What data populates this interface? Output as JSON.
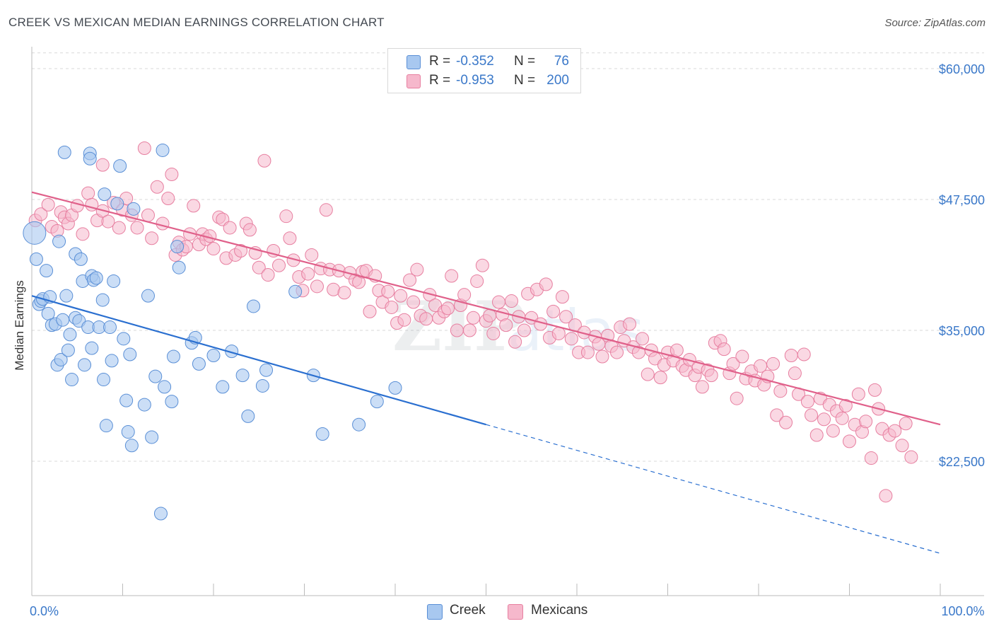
{
  "header": {
    "title": "CREEK VS MEXICAN MEDIAN EARNINGS CORRELATION CHART",
    "source": "Source: ZipAtlas.com"
  },
  "legend_top": {
    "creek": {
      "r_label": "R =",
      "r_value": "-0.352",
      "n_label": "N =",
      "n_value": "76"
    },
    "mexicans": {
      "r_label": "R =",
      "r_value": "-0.953",
      "n_label": "N =",
      "n_value": "200"
    }
  },
  "legend_bottom": {
    "creek": "Creek",
    "mexicans": "Mexicans"
  },
  "colors": {
    "creek_fill": "#a8c8f0",
    "creek_stroke": "#5a8fd6",
    "creek_line": "#2a6fd0",
    "mex_fill": "#f6b8cc",
    "mex_stroke": "#e77fa0",
    "mex_line": "#e0608a",
    "grid": "#d8d8d8",
    "tick_label": "#3a78c9"
  },
  "chart_data": {
    "type": "scatter",
    "title": "CREEK VS MEXICAN MEDIAN EARNINGS CORRELATION CHART",
    "xlabel": "",
    "ylabel": "Median Earnings",
    "xlim": [
      0,
      100
    ],
    "ylim": [
      12000,
      62000
    ],
    "x_tick_labels": [
      {
        "v": 0,
        "label": "0.0%"
      },
      {
        "v": 100,
        "label": "100.0%"
      }
    ],
    "y_ticks": [
      {
        "v": 22500,
        "label": "$22,500"
      },
      {
        "v": 35000,
        "label": "$35,000"
      },
      {
        "v": 47500,
        "label": "$47,500"
      },
      {
        "v": 60000,
        "label": "$60,000"
      }
    ],
    "grid": "horizontal dashed",
    "series": [
      {
        "name": "Creek",
        "trend": {
          "x0": 0,
          "y0": 38300,
          "x1": 50,
          "y1": 26000,
          "dashed_to": 100,
          "dashed_y": 13700
        },
        "points": [
          [
            0.3,
            44300
          ],
          [
            0.5,
            41800
          ],
          [
            0.8,
            37500
          ],
          [
            1.0,
            37800
          ],
          [
            1.2,
            38000
          ],
          [
            1.6,
            40700
          ],
          [
            1.8,
            36600
          ],
          [
            2.0,
            38200
          ],
          [
            2.2,
            35500
          ],
          [
            2.6,
            35600
          ],
          [
            2.8,
            31700
          ],
          [
            3.0,
            43500
          ],
          [
            3.2,
            32200
          ],
          [
            3.4,
            36000
          ],
          [
            3.6,
            52000
          ],
          [
            3.8,
            38300
          ],
          [
            4.0,
            33100
          ],
          [
            4.2,
            34600
          ],
          [
            4.4,
            30300
          ],
          [
            4.8,
            36200
          ],
          [
            4.8,
            42300
          ],
          [
            5.2,
            35900
          ],
          [
            5.4,
            41800
          ],
          [
            5.6,
            39700
          ],
          [
            5.8,
            31700
          ],
          [
            6.2,
            35300
          ],
          [
            6.4,
            51900
          ],
          [
            6.4,
            51400
          ],
          [
            6.6,
            33300
          ],
          [
            6.6,
            40200
          ],
          [
            6.8,
            39800
          ],
          [
            7.1,
            40000
          ],
          [
            7.4,
            35300
          ],
          [
            7.8,
            37900
          ],
          [
            7.9,
            30300
          ],
          [
            8.0,
            48000
          ],
          [
            8.2,
            25900
          ],
          [
            8.6,
            35300
          ],
          [
            8.8,
            32100
          ],
          [
            9.0,
            39700
          ],
          [
            9.4,
            47100
          ],
          [
            9.7,
            50700
          ],
          [
            10.1,
            34200
          ],
          [
            10.4,
            28300
          ],
          [
            10.6,
            25300
          ],
          [
            10.8,
            32700
          ],
          [
            11.0,
            24000
          ],
          [
            11.2,
            46600
          ],
          [
            12.4,
            27900
          ],
          [
            12.8,
            38300
          ],
          [
            13.2,
            24800
          ],
          [
            13.6,
            30600
          ],
          [
            14.2,
            17500
          ],
          [
            14.4,
            52200
          ],
          [
            14.6,
            29600
          ],
          [
            15.4,
            28200
          ],
          [
            15.6,
            32500
          ],
          [
            16.0,
            43000
          ],
          [
            16.2,
            41000
          ],
          [
            17.6,
            33800
          ],
          [
            18.0,
            34300
          ],
          [
            18.4,
            31800
          ],
          [
            20.0,
            32600
          ],
          [
            21.0,
            29600
          ],
          [
            22.0,
            33000
          ],
          [
            23.2,
            30700
          ],
          [
            23.8,
            26800
          ],
          [
            24.4,
            37300
          ],
          [
            25.4,
            29700
          ],
          [
            25.8,
            31200
          ],
          [
            29.0,
            38700
          ],
          [
            31.0,
            30700
          ],
          [
            32.0,
            25100
          ],
          [
            38.0,
            28200
          ],
          [
            40.0,
            29500
          ],
          [
            36.0,
            26000
          ]
        ]
      },
      {
        "name": "Mexicans",
        "trend": {
          "x0": 0,
          "y0": 48200,
          "x1": 100,
          "y1": 26000
        },
        "points": [
          [
            0.4,
            45500
          ],
          [
            1.0,
            46100
          ],
          [
            1.8,
            47000
          ],
          [
            2.2,
            44900
          ],
          [
            2.8,
            44500
          ],
          [
            3.2,
            46300
          ],
          [
            3.6,
            45800
          ],
          [
            4.0,
            45200
          ],
          [
            4.4,
            46000
          ],
          [
            5.0,
            46900
          ],
          [
            5.6,
            44200
          ],
          [
            6.2,
            48100
          ],
          [
            6.6,
            47000
          ],
          [
            7.2,
            45500
          ],
          [
            7.8,
            46400
          ],
          [
            7.8,
            50800
          ],
          [
            8.4,
            45400
          ],
          [
            9.0,
            47200
          ],
          [
            9.6,
            44800
          ],
          [
            10.0,
            46500
          ],
          [
            10.4,
            47600
          ],
          [
            11.0,
            46000
          ],
          [
            11.6,
            44800
          ],
          [
            12.4,
            52400
          ],
          [
            12.8,
            46000
          ],
          [
            13.2,
            43800
          ],
          [
            13.8,
            48700
          ],
          [
            14.4,
            45200
          ],
          [
            15.0,
            47600
          ],
          [
            15.4,
            49900
          ],
          [
            15.8,
            42200
          ],
          [
            16.2,
            43400
          ],
          [
            16.6,
            42700
          ],
          [
            17.0,
            43000
          ],
          [
            17.4,
            44200
          ],
          [
            17.8,
            46900
          ],
          [
            18.4,
            43200
          ],
          [
            18.8,
            44200
          ],
          [
            19.2,
            43700
          ],
          [
            19.6,
            44000
          ],
          [
            20.0,
            42800
          ],
          [
            20.6,
            45800
          ],
          [
            21.0,
            45600
          ],
          [
            21.4,
            41900
          ],
          [
            21.8,
            44800
          ],
          [
            22.4,
            42200
          ],
          [
            23.0,
            42600
          ],
          [
            23.6,
            45200
          ],
          [
            24.0,
            44600
          ],
          [
            24.6,
            42400
          ],
          [
            25.0,
            41000
          ],
          [
            25.6,
            51200
          ],
          [
            26.0,
            40300
          ],
          [
            26.6,
            42600
          ],
          [
            27.2,
            41200
          ],
          [
            28.0,
            45900
          ],
          [
            28.4,
            43800
          ],
          [
            28.8,
            41700
          ],
          [
            29.4,
            40100
          ],
          [
            29.8,
            38800
          ],
          [
            30.4,
            40400
          ],
          [
            30.8,
            42200
          ],
          [
            31.4,
            39200
          ],
          [
            31.8,
            40900
          ],
          [
            32.4,
            46500
          ],
          [
            32.8,
            40800
          ],
          [
            33.2,
            38900
          ],
          [
            33.8,
            40700
          ],
          [
            34.4,
            38600
          ],
          [
            35.0,
            40500
          ],
          [
            35.6,
            39800
          ],
          [
            36.0,
            39600
          ],
          [
            36.4,
            40600
          ],
          [
            36.8,
            40700
          ],
          [
            37.2,
            36800
          ],
          [
            37.8,
            40200
          ],
          [
            38.2,
            38800
          ],
          [
            38.6,
            37700
          ],
          [
            39.2,
            38700
          ],
          [
            39.6,
            37200
          ],
          [
            40.2,
            35700
          ],
          [
            40.6,
            38300
          ],
          [
            41.0,
            36000
          ],
          [
            41.6,
            39800
          ],
          [
            42.0,
            37700
          ],
          [
            42.4,
            40800
          ],
          [
            42.8,
            36400
          ],
          [
            43.4,
            36100
          ],
          [
            43.8,
            38400
          ],
          [
            44.4,
            37400
          ],
          [
            44.8,
            36200
          ],
          [
            45.4,
            36800
          ],
          [
            45.8,
            37100
          ],
          [
            46.2,
            40200
          ],
          [
            46.8,
            35000
          ],
          [
            47.2,
            37400
          ],
          [
            47.6,
            38400
          ],
          [
            48.2,
            35000
          ],
          [
            48.6,
            36200
          ],
          [
            49.0,
            39700
          ],
          [
            49.6,
            41200
          ],
          [
            50.0,
            35900
          ],
          [
            50.4,
            36400
          ],
          [
            50.8,
            34700
          ],
          [
            51.4,
            37700
          ],
          [
            51.8,
            36500
          ],
          [
            52.2,
            35500
          ],
          [
            52.8,
            37800
          ],
          [
            53.2,
            33900
          ],
          [
            53.6,
            36300
          ],
          [
            54.2,
            35000
          ],
          [
            54.6,
            38500
          ],
          [
            55.0,
            36200
          ],
          [
            55.6,
            38900
          ],
          [
            56.0,
            35600
          ],
          [
            56.6,
            39400
          ],
          [
            57.0,
            34300
          ],
          [
            57.4,
            36800
          ],
          [
            58.0,
            34700
          ],
          [
            58.4,
            38200
          ],
          [
            58.8,
            36300
          ],
          [
            59.4,
            34200
          ],
          [
            59.8,
            35500
          ],
          [
            60.2,
            32900
          ],
          [
            60.8,
            34800
          ],
          [
            61.2,
            32900
          ],
          [
            62.0,
            34400
          ],
          [
            62.4,
            33700
          ],
          [
            62.8,
            32500
          ],
          [
            63.4,
            34500
          ],
          [
            63.8,
            33500
          ],
          [
            64.4,
            32900
          ],
          [
            64.8,
            35300
          ],
          [
            65.2,
            34000
          ],
          [
            65.8,
            35600
          ],
          [
            66.2,
            33400
          ],
          [
            66.8,
            32900
          ],
          [
            67.2,
            34200
          ],
          [
            67.8,
            30800
          ],
          [
            68.2,
            33100
          ],
          [
            68.6,
            32300
          ],
          [
            69.2,
            30500
          ],
          [
            69.6,
            31700
          ],
          [
            70.0,
            32900
          ],
          [
            70.6,
            32100
          ],
          [
            71.0,
            33100
          ],
          [
            71.6,
            31600
          ],
          [
            72.0,
            31200
          ],
          [
            72.4,
            32200
          ],
          [
            73.0,
            30700
          ],
          [
            73.4,
            31500
          ],
          [
            73.8,
            29600
          ],
          [
            74.4,
            31200
          ],
          [
            74.8,
            30700
          ],
          [
            75.2,
            33800
          ],
          [
            75.8,
            34000
          ],
          [
            76.2,
            33200
          ],
          [
            76.8,
            30900
          ],
          [
            77.2,
            31800
          ],
          [
            77.6,
            28500
          ],
          [
            78.2,
            32500
          ],
          [
            78.6,
            30400
          ],
          [
            79.2,
            31100
          ],
          [
            79.6,
            30200
          ],
          [
            80.2,
            31600
          ],
          [
            80.6,
            29800
          ],
          [
            81.0,
            30600
          ],
          [
            81.6,
            31800
          ],
          [
            82.0,
            26900
          ],
          [
            82.4,
            29200
          ],
          [
            83.0,
            26200
          ],
          [
            83.6,
            32600
          ],
          [
            84.0,
            30900
          ],
          [
            84.4,
            28900
          ],
          [
            85.0,
            32700
          ],
          [
            85.4,
            28200
          ],
          [
            85.8,
            26900
          ],
          [
            86.4,
            25000
          ],
          [
            86.8,
            28500
          ],
          [
            87.2,
            26500
          ],
          [
            87.8,
            27900
          ],
          [
            88.2,
            25400
          ],
          [
            88.6,
            27300
          ],
          [
            89.2,
            26600
          ],
          [
            89.6,
            27800
          ],
          [
            90.0,
            24400
          ],
          [
            90.6,
            26000
          ],
          [
            91.0,
            28900
          ],
          [
            91.4,
            25300
          ],
          [
            91.8,
            26300
          ],
          [
            92.4,
            22800
          ],
          [
            92.8,
            29300
          ],
          [
            93.2,
            27500
          ],
          [
            93.6,
            25600
          ],
          [
            94.0,
            19200
          ],
          [
            94.4,
            25000
          ],
          [
            95.0,
            25400
          ],
          [
            95.8,
            24000
          ],
          [
            96.2,
            26100
          ],
          [
            96.8,
            22900
          ]
        ]
      }
    ]
  }
}
